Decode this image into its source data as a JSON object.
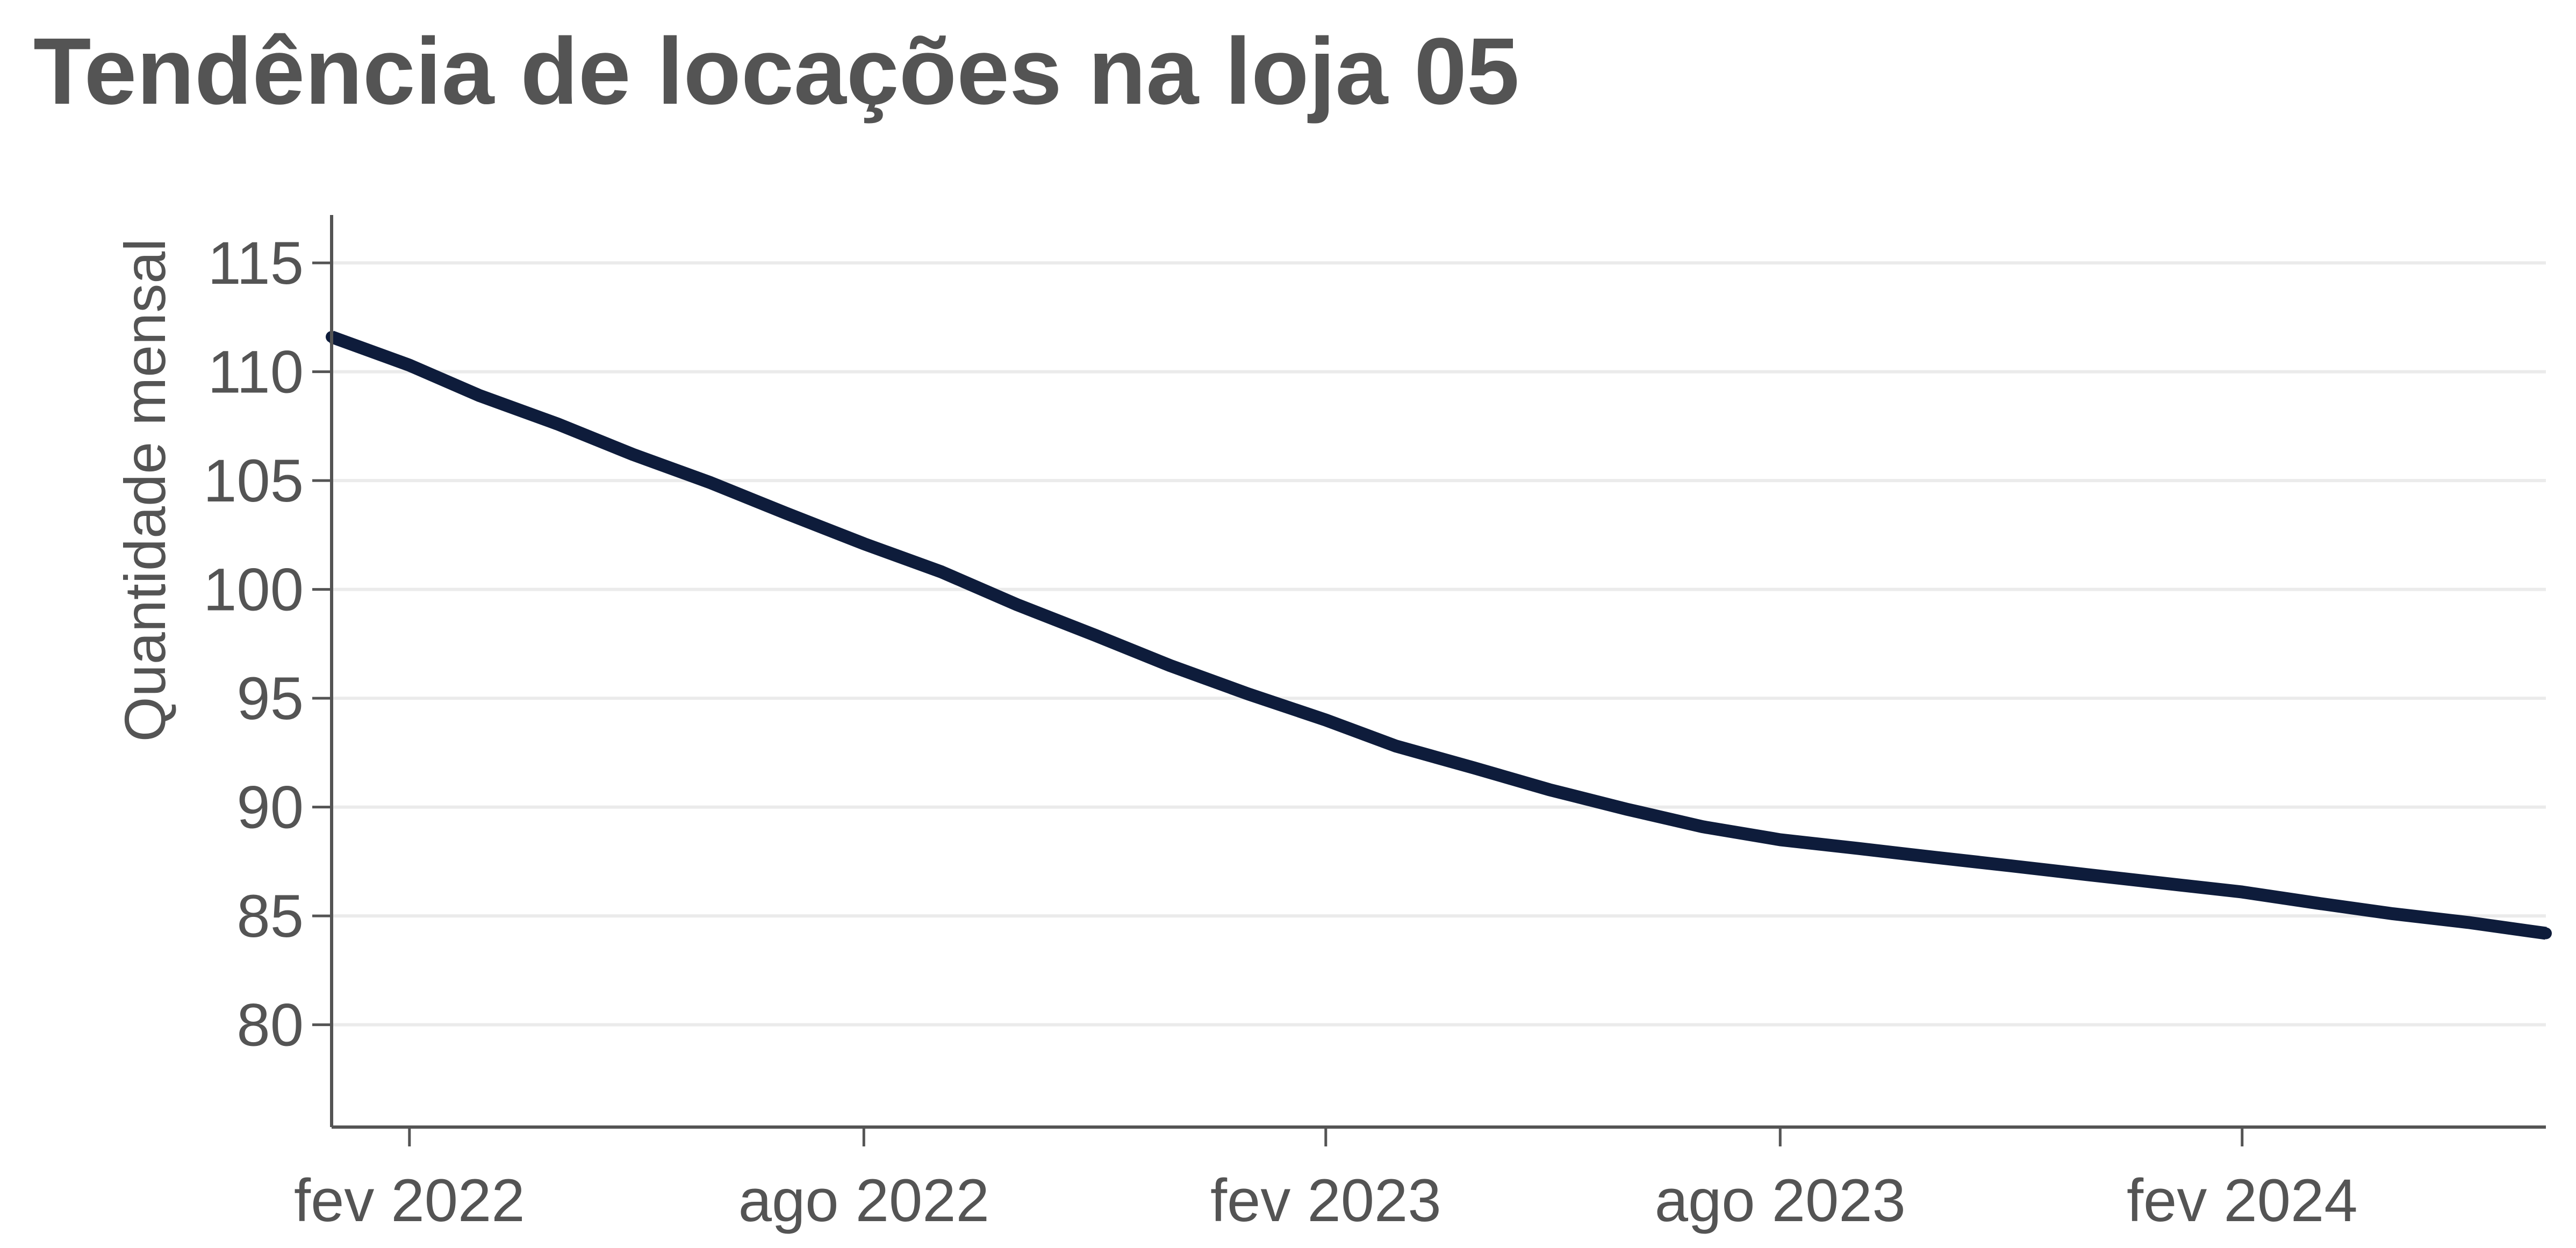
{
  "chart_data": {
    "type": "line",
    "title": "Tendência de locações na loja 05",
    "xlabel": "",
    "ylabel": "Quantidade mensal",
    "x_tick_labels": [
      "fev 2022",
      "ago 2022",
      "fev 2023",
      "ago 2023",
      "fev 2024"
    ],
    "x_tick_dates": [
      "2022-02-01",
      "2022-08-01",
      "2023-02-01",
      "2023-08-01",
      "2024-02-01"
    ],
    "y_ticks": [
      80,
      85,
      90,
      95,
      100,
      105,
      110,
      115
    ],
    "ylim": [
      75.3,
      117.2
    ],
    "xlim": [
      "2022-01-01",
      "2024-06-01"
    ],
    "grid": {
      "horizontal": true,
      "vertical": false
    },
    "legend": "none",
    "colors": {
      "line": "#0e1c3b",
      "text": "#545454",
      "grid": "#ebebeb",
      "axis": "#545454"
    },
    "series": [
      {
        "x": [
          "2022-01-01",
          "2022-02-01",
          "2022-03-01",
          "2022-04-01",
          "2022-05-01",
          "2022-06-01",
          "2022-07-01",
          "2022-08-01",
          "2022-09-01",
          "2022-10-01",
          "2022-11-01",
          "2022-12-01",
          "2023-01-01",
          "2023-02-01",
          "2023-03-01",
          "2023-04-01",
          "2023-05-01",
          "2023-06-01",
          "2023-07-01",
          "2023-08-01",
          "2023-09-01",
          "2023-10-01",
          "2023-11-01",
          "2023-12-01",
          "2024-01-01",
          "2024-02-01",
          "2024-03-01",
          "2024-04-01",
          "2024-05-01",
          "2024-06-01"
        ],
        "y": [
          111.6,
          110.3,
          108.9,
          107.6,
          106.2,
          104.9,
          103.5,
          102.1,
          100.8,
          99.3,
          97.9,
          96.5,
          95.2,
          94.0,
          92.8,
          91.8,
          90.8,
          89.9,
          89.1,
          88.5,
          88.1,
          87.7,
          87.3,
          86.9,
          86.5,
          86.1,
          85.6,
          85.1,
          84.7,
          84.2
        ]
      }
    ]
  }
}
